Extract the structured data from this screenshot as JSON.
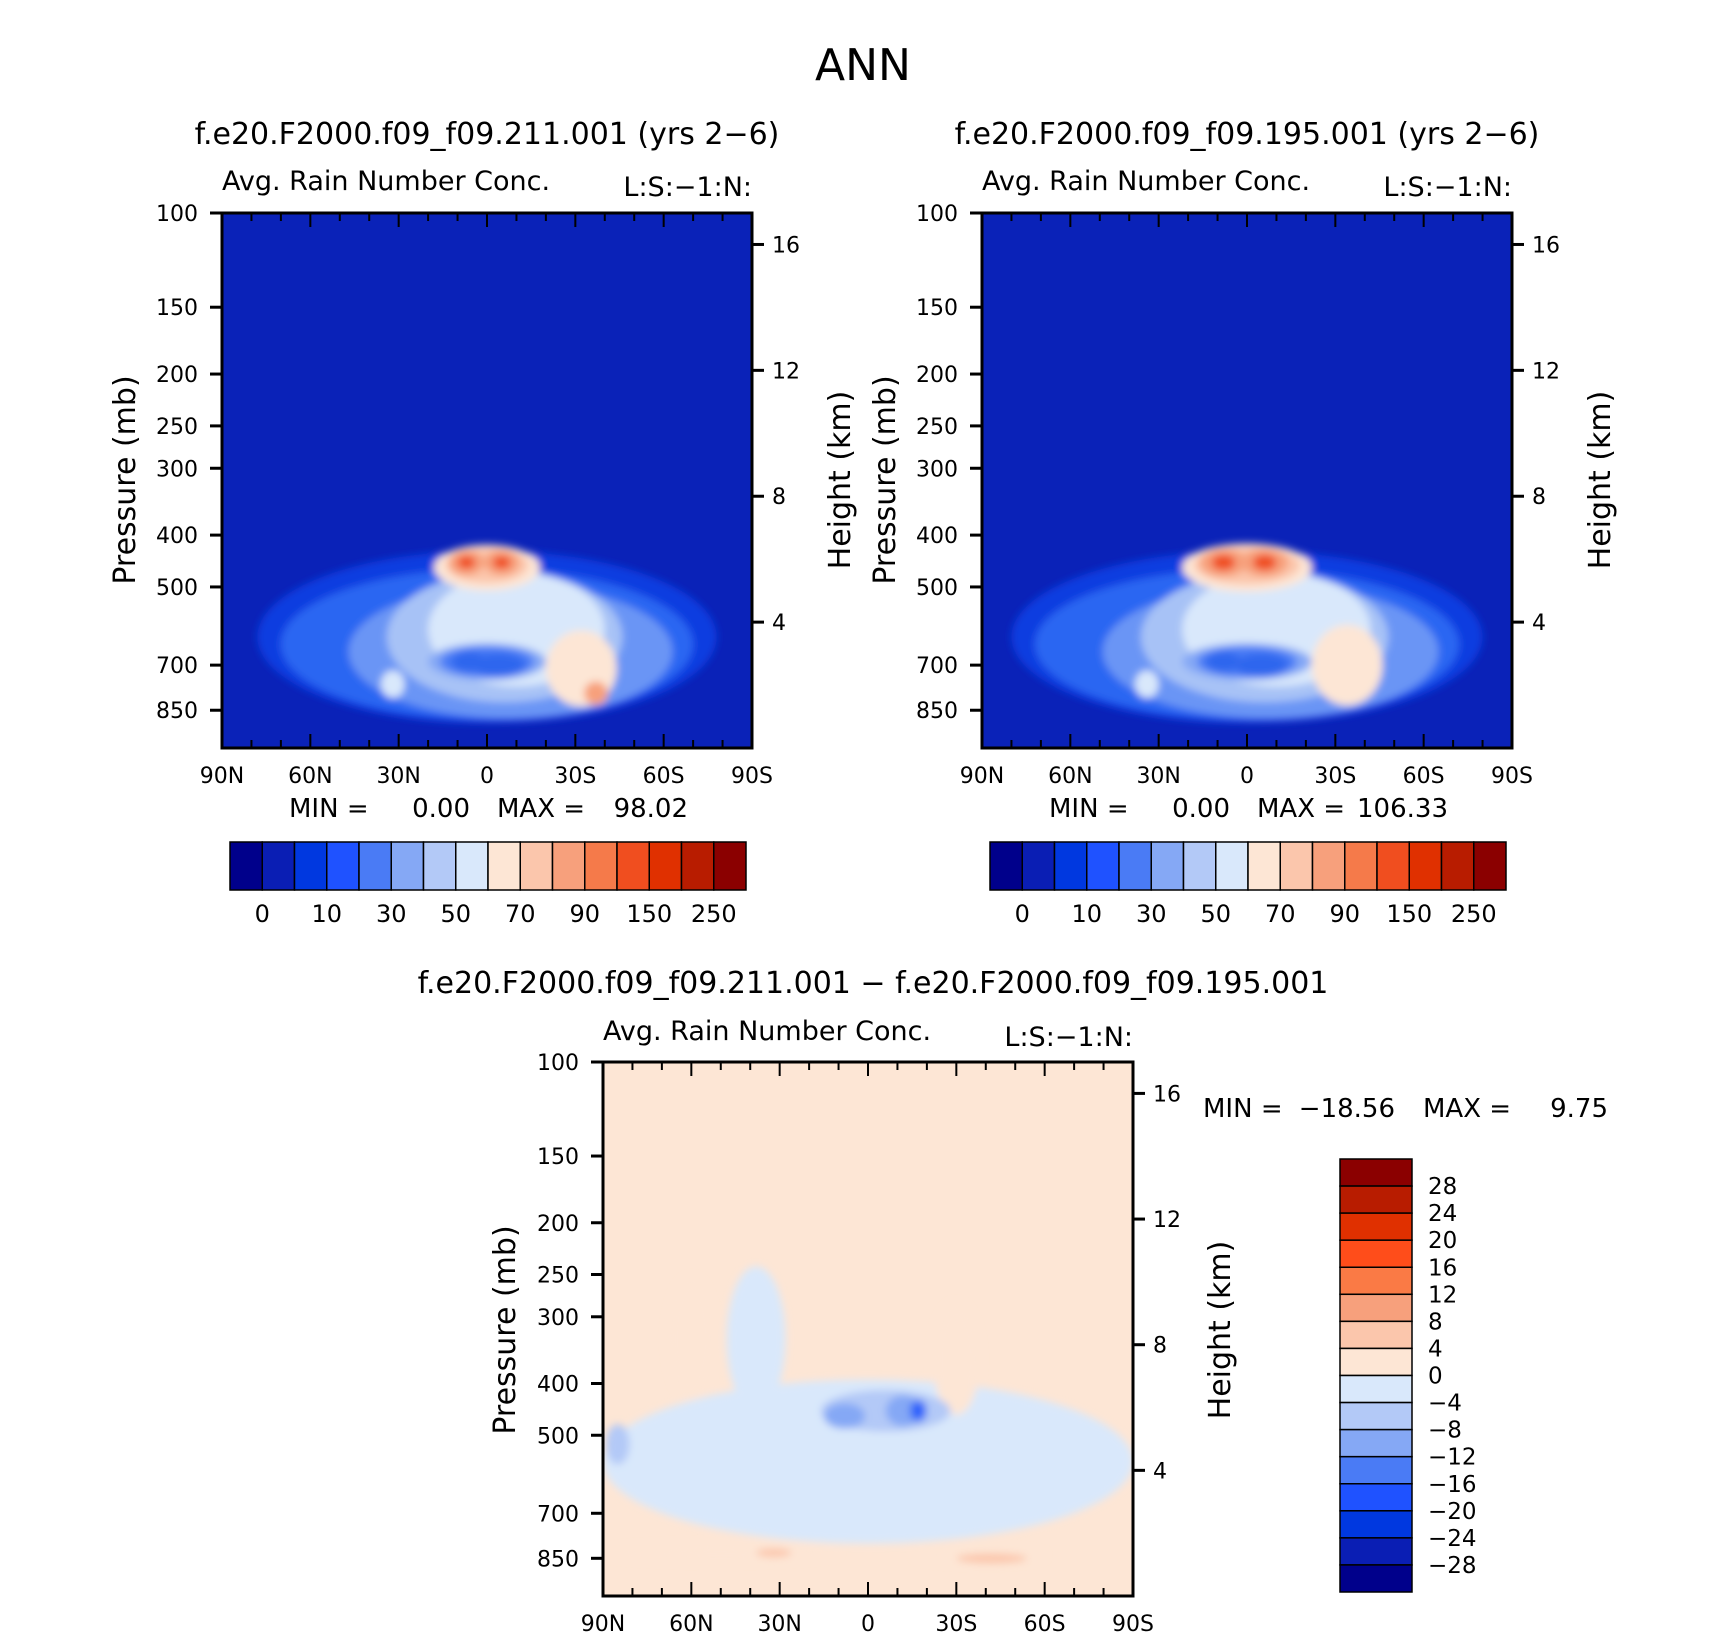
{
  "figure_title": "ANN",
  "chart_data": [
    {
      "type": "heatmap",
      "id": "p1",
      "title": "f.e20.F2000.f09_f09.211.001 (yrs 2−6)",
      "subtitle": "Avg. Rain Number Conc.",
      "corner_label": "L:S:−1:N:",
      "ylabel": "Pressure (mb)",
      "ylabel_right": "Height (km)",
      "x_ticks": [
        "90N",
        "60N",
        "30N",
        "0",
        "30S",
        "60S",
        "90S"
      ],
      "x_values": [
        90,
        60,
        30,
        0,
        -30,
        -60,
        -90
      ],
      "y_ticks": [
        100,
        150,
        200,
        250,
        300,
        400,
        500,
        700,
        850
      ],
      "y_range": [
        100,
        1000
      ],
      "height_ticks": [
        16,
        12,
        8,
        4
      ],
      "stats": {
        "min_label": "MIN =",
        "min": "0.00",
        "max_label": "MAX =",
        "max": "98.02"
      },
      "colorbar_levels": [
        "0",
        "10",
        "30",
        "50",
        "70",
        "90",
        "150",
        "250"
      ],
      "colorbar_colors": [
        "#00008b",
        "#0a1eb4",
        "#0038e0",
        "#1f52ff",
        "#4a7bf5",
        "#85a8f5",
        "#b3c9f7",
        "#d9e8fb",
        "#fde6d5",
        "#fbc6ac",
        "#f7a07c",
        "#f57a4a",
        "#f04e1f",
        "#e03000",
        "#b81c00",
        "#8b0000"
      ],
      "background": "#0a22b8",
      "blobs": [
        {
          "lat": 0,
          "p": 620,
          "wlat": 78,
          "dp": 440,
          "color": "#0e3ce0"
        },
        {
          "lat": 0,
          "p": 640,
          "wlat": 70,
          "dp": 400,
          "color": "#2c66f2"
        },
        {
          "lat": -8,
          "p": 660,
          "wlat": 55,
          "dp": 370,
          "color": "#6b95f5"
        },
        {
          "lat": -6,
          "p": 620,
          "wlat": 40,
          "dp": 340,
          "color": "#a7c2f6"
        },
        {
          "lat": -10,
          "p": 600,
          "wlat": 30,
          "dp": 290,
          "color": "#d9e8fb"
        },
        {
          "lat": -32,
          "p": 710,
          "wlat": 12,
          "dp": 230,
          "color": "#fde6d5"
        },
        {
          "lat": 0,
          "p": 460,
          "wlat": 18,
          "dp": 90,
          "color": "#fde6d5"
        },
        {
          "lat": 0,
          "p": 455,
          "wlat": 14,
          "dp": 70,
          "color": "#fbc6ac"
        },
        {
          "lat": 7,
          "p": 450,
          "wlat": 6,
          "dp": 50,
          "color": "#f7a07c"
        },
        {
          "lat": -5,
          "p": 450,
          "wlat": 6,
          "dp": 50,
          "color": "#f7a07c"
        },
        {
          "lat": 7,
          "p": 450,
          "wlat": 3,
          "dp": 25,
          "color": "#f05020"
        },
        {
          "lat": -5,
          "p": 450,
          "wlat": 3,
          "dp": 25,
          "color": "#f05020"
        },
        {
          "lat": 0,
          "p": 690,
          "wlat": 20,
          "dp": 110,
          "color": "#85a8f5"
        },
        {
          "lat": 0,
          "p": 690,
          "wlat": 16,
          "dp": 90,
          "color": "#4a7bf5"
        },
        {
          "lat": -4,
          "p": 700,
          "wlat": 9,
          "dp": 70,
          "color": "#2f66ee"
        },
        {
          "lat": 6,
          "p": 690,
          "wlat": 6,
          "dp": 60,
          "color": "#2f66ee"
        },
        {
          "lat": -37,
          "p": 790,
          "wlat": 4,
          "dp": 80,
          "color": "#f7a07c"
        },
        {
          "lat": 32,
          "p": 760,
          "wlat": 4,
          "dp": 90,
          "color": "#d9e8fb"
        }
      ]
    },
    {
      "type": "heatmap",
      "id": "p2",
      "title": "f.e20.F2000.f09_f09.195.001 (yrs 2−6)",
      "subtitle": "Avg. Rain Number Conc.",
      "corner_label": "L:S:−1:N:",
      "ylabel": "Pressure (mb)",
      "ylabel_right": "Height (km)",
      "x_ticks": [
        "90N",
        "60N",
        "30N",
        "0",
        "30S",
        "60S",
        "90S"
      ],
      "x_values": [
        90,
        60,
        30,
        0,
        -30,
        -60,
        -90
      ],
      "y_ticks": [
        100,
        150,
        200,
        250,
        300,
        400,
        500,
        700,
        850
      ],
      "y_range": [
        100,
        1000
      ],
      "height_ticks": [
        16,
        12,
        8,
        4
      ],
      "stats": {
        "min_label": "MIN =",
        "min": "0.00",
        "max_label": "MAX =",
        "max": "106.33"
      },
      "colorbar_levels": [
        "0",
        "10",
        "30",
        "50",
        "70",
        "90",
        "150",
        "250"
      ],
      "colorbar_colors": [
        "#00008b",
        "#0a1eb4",
        "#0038e0",
        "#1f52ff",
        "#4a7bf5",
        "#85a8f5",
        "#b3c9f7",
        "#d9e8fb",
        "#fde6d5",
        "#fbc6ac",
        "#f7a07c",
        "#f57a4a",
        "#f04e1f",
        "#e03000",
        "#b81c00",
        "#8b0000"
      ],
      "background": "#0a22b8",
      "blobs": [
        {
          "lat": 0,
          "p": 620,
          "wlat": 80,
          "dp": 440,
          "color": "#0e3ce0"
        },
        {
          "lat": 0,
          "p": 640,
          "wlat": 72,
          "dp": 400,
          "color": "#2c66f2"
        },
        {
          "lat": -8,
          "p": 660,
          "wlat": 57,
          "dp": 370,
          "color": "#6b95f5"
        },
        {
          "lat": -6,
          "p": 620,
          "wlat": 42,
          "dp": 340,
          "color": "#a7c2f6"
        },
        {
          "lat": -10,
          "p": 600,
          "wlat": 32,
          "dp": 290,
          "color": "#d9e8fb"
        },
        {
          "lat": -34,
          "p": 700,
          "wlat": 12,
          "dp": 240,
          "color": "#fde6d5"
        },
        {
          "lat": 0,
          "p": 460,
          "wlat": 22,
          "dp": 95,
          "color": "#fde6d5"
        },
        {
          "lat": 0,
          "p": 455,
          "wlat": 18,
          "dp": 75,
          "color": "#fbc6ac"
        },
        {
          "lat": 8,
          "p": 450,
          "wlat": 8,
          "dp": 55,
          "color": "#f7a07c"
        },
        {
          "lat": -6,
          "p": 450,
          "wlat": 8,
          "dp": 55,
          "color": "#f7a07c"
        },
        {
          "lat": 8,
          "p": 450,
          "wlat": 4,
          "dp": 30,
          "color": "#f05020"
        },
        {
          "lat": -6,
          "p": 450,
          "wlat": 4,
          "dp": 30,
          "color": "#f05020"
        },
        {
          "lat": 0,
          "p": 690,
          "wlat": 22,
          "dp": 110,
          "color": "#85a8f5"
        },
        {
          "lat": 0,
          "p": 690,
          "wlat": 17,
          "dp": 90,
          "color": "#4a7bf5"
        },
        {
          "lat": -5,
          "p": 700,
          "wlat": 9,
          "dp": 70,
          "color": "#2f66ee"
        },
        {
          "lat": 8,
          "p": 690,
          "wlat": 6,
          "dp": 60,
          "color": "#2f66ee"
        },
        {
          "lat": 34,
          "p": 760,
          "wlat": 4,
          "dp": 90,
          "color": "#d9e8fb"
        }
      ]
    },
    {
      "type": "heatmap",
      "id": "p3",
      "title": "f.e20.F2000.f09_f09.211.001 − f.e20.F2000.f09_f09.195.001",
      "subtitle": "Avg. Rain Number Conc.",
      "corner_label": "L:S:−1:N:",
      "ylabel": "Pressure (mb)",
      "ylabel_right": "Height (km)",
      "x_ticks": [
        "90N",
        "60N",
        "30N",
        "0",
        "30S",
        "60S",
        "90S"
      ],
      "x_values": [
        90,
        60,
        30,
        0,
        -30,
        -60,
        -90
      ],
      "y_ticks": [
        100,
        150,
        200,
        250,
        300,
        400,
        500,
        700,
        850
      ],
      "y_range": [
        100,
        1000
      ],
      "height_ticks": [
        16,
        12,
        8,
        4
      ],
      "stats": {
        "min_label": "MIN =",
        "min": "−18.56",
        "max_label": "MAX =",
        "max": "9.75"
      },
      "colorbar_levels": [
        "28",
        "24",
        "20",
        "16",
        "12",
        "8",
        "4",
        "0",
        "−4",
        "−8",
        "−12",
        "−16",
        "−20",
        "−24",
        "−28"
      ],
      "colorbar_colors": [
        "#8b0000",
        "#b81c00",
        "#e03000",
        "#ff4d1a",
        "#fa7a45",
        "#f7a07c",
        "#fbc6ac",
        "#fde6d5",
        "#d9e8fb",
        "#b3c9f7",
        "#85a8f5",
        "#4a7bf5",
        "#1f52ff",
        "#0038e0",
        "#0a1eb4",
        "#00008b"
      ],
      "background": "#fde6d5",
      "blobs": [
        {
          "lat": 0,
          "p": 560,
          "wlat": 90,
          "dp": 380,
          "color": "#d9e8fb"
        },
        {
          "lat": 38,
          "p": 330,
          "wlat": 10,
          "dp": 200,
          "color": "#d9e8fb"
        },
        {
          "lat": 60,
          "p": 330,
          "wlat": 8,
          "dp": 170,
          "color": "#fde6d5"
        },
        {
          "lat": 50,
          "p": 830,
          "wlat": 40,
          "dp": 60,
          "color": "#fde6d5"
        },
        {
          "lat": -38,
          "p": 840,
          "wlat": 22,
          "dp": 55,
          "color": "#fde6d5"
        },
        {
          "lat": -30,
          "p": 360,
          "wlat": 8,
          "dp": 170,
          "color": "#fde6d5"
        },
        {
          "lat": -42,
          "p": 850,
          "wlat": 12,
          "dp": 35,
          "color": "#fbc6ac"
        },
        {
          "lat": 32,
          "p": 830,
          "wlat": 6,
          "dp": 30,
          "color": "#fbc6ac"
        },
        {
          "lat": -6,
          "p": 450,
          "wlat": 22,
          "dp": 80,
          "color": "#b3c9f7"
        },
        {
          "lat": 8,
          "p": 460,
          "wlat": 7,
          "dp": 50,
          "color": "#85a8f5"
        },
        {
          "lat": -12,
          "p": 450,
          "wlat": 6,
          "dp": 60,
          "color": "#85a8f5"
        },
        {
          "lat": -17,
          "p": 450,
          "wlat": 3,
          "dp": 45,
          "color": "#4a7bf5"
        },
        {
          "lat": -17,
          "p": 450,
          "wlat": 1.5,
          "dp": 25,
          "color": "#1f52ff"
        },
        {
          "lat": 85,
          "p": 520,
          "wlat": 4,
          "dp": 90,
          "color": "#b3c9f7"
        }
      ]
    }
  ]
}
